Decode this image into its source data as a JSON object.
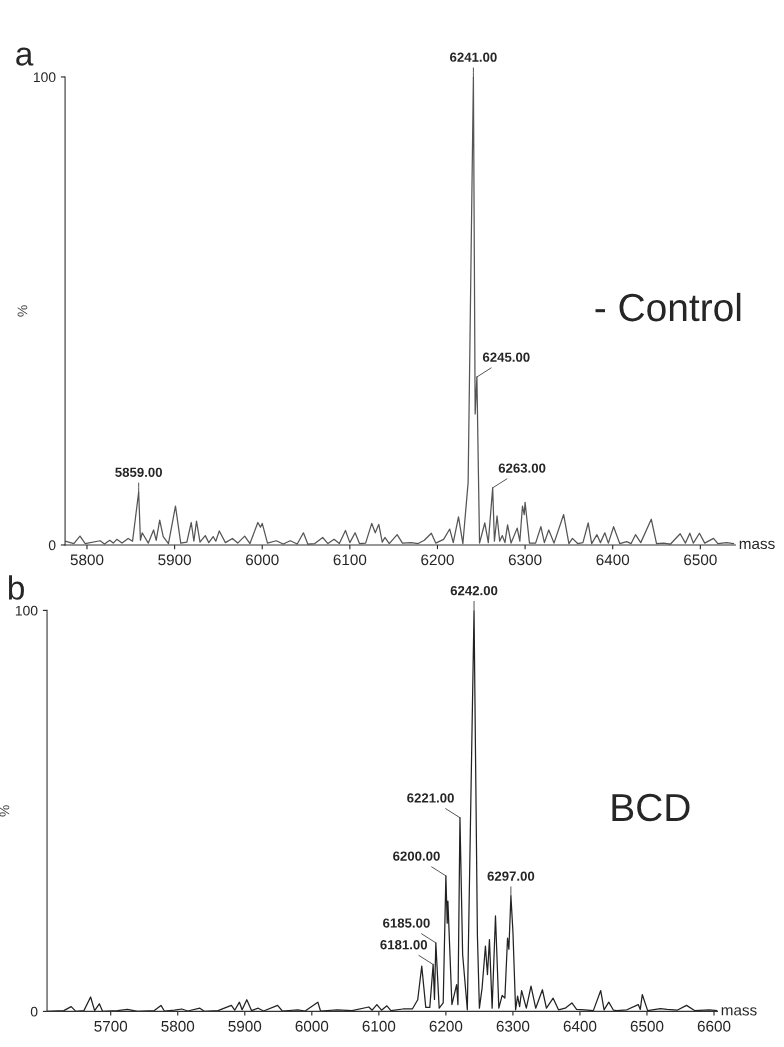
{
  "chart_data": [
    {
      "type": "line",
      "title": "a",
      "xlabel": "mass",
      "ylabel": "%",
      "xlim": [
        5775,
        6540
      ],
      "ylim": [
        0,
        100
      ],
      "xticks": [
        5800,
        5900,
        6000,
        6100,
        6200,
        6300,
        6400,
        6500
      ],
      "yticks": [
        0,
        100
      ],
      "grid": false,
      "marker": "none",
      "line_style": "solid",
      "series": [
        {
          "color": "#555555",
          "x": [
            5775,
            5785,
            5792,
            5798,
            5815,
            5820,
            5826,
            5830,
            5834,
            5840,
            5847,
            5852,
            5859,
            5861,
            5863,
            5870,
            5876,
            5879,
            5883,
            5887,
            5893,
            5901,
            5907,
            5914,
            5919,
            5922,
            5925,
            5929,
            5935,
            5939,
            5944,
            5947,
            5951,
            5958,
            5966,
            5972,
            5980,
            5986,
            5995,
            5998,
            6000,
            6006,
            6016,
            6024,
            6032,
            6040,
            6047,
            6052,
            6060,
            6069,
            6075,
            6082,
            6088,
            6095,
            6100,
            6106,
            6111,
            6118,
            6125,
            6129,
            6133,
            6137,
            6140,
            6145,
            6154,
            6160,
            6170,
            6178,
            6185,
            6193,
            6198,
            6207,
            6214,
            6218,
            6224,
            6229,
            6235,
            6241,
            6243,
            6245,
            6248,
            6254,
            6258,
            6263,
            6265,
            6268,
            6271,
            6274,
            6277,
            6280,
            6284,
            6291,
            6294,
            6297,
            6299,
            6300,
            6305,
            6312,
            6318,
            6322,
            6327,
            6333,
            6344,
            6350,
            6354,
            6360,
            6366,
            6372,
            6376,
            6382,
            6386,
            6391,
            6395,
            6401,
            6408,
            6416,
            6421,
            6426,
            6432,
            6444,
            6450,
            6458,
            6466,
            6477,
            6483,
            6488,
            6492,
            6499,
            6505,
            6515,
            6520,
            6530,
            6538
          ],
          "values": [
            0.8,
            0.3,
            1.9,
            0.3,
            0.9,
            0.2,
            1.0,
            0.4,
            1.2,
            0.4,
            1.4,
            0.8,
            11.3,
            1.0,
            2.6,
            0.4,
            3.2,
            1.0,
            5.3,
            1.8,
            0.3,
            8.3,
            0.4,
            0.6,
            4.8,
            0.8,
            5.1,
            0.6,
            2.0,
            0.5,
            1.8,
            0.8,
            3.0,
            0.5,
            1.4,
            0.4,
            1.9,
            0.3,
            4.8,
            3.8,
            4.6,
            0.4,
            0.9,
            0.2,
            0.9,
            0.2,
            2.6,
            0.2,
            0.3,
            1.6,
            0.3,
            1.2,
            0.3,
            3.1,
            0.5,
            2.6,
            0.3,
            0.4,
            4.6,
            2.6,
            4.4,
            0.6,
            1.6,
            0.3,
            2.2,
            0.4,
            0.5,
            0.3,
            1.0,
            2.5,
            0.4,
            1.2,
            3.4,
            0.5,
            6.0,
            0.3,
            13.4,
            100,
            28,
            35.9,
            0.4,
            4.7,
            0.5,
            12.2,
            0.8,
            6.2,
            0.8,
            2.0,
            0.5,
            4.3,
            0.4,
            3.6,
            0.8,
            8.3,
            6.5,
            9.1,
            0.4,
            0.4,
            3.9,
            0.5,
            3.2,
            0.4,
            6.5,
            0.3,
            1.4,
            0.3,
            0.5,
            4.7,
            0.3,
            2.2,
            0.5,
            2.6,
            0.4,
            3.9,
            0.3,
            0.7,
            0.3,
            2.2,
            0.5,
            5.5,
            0.3,
            0.4,
            0.2,
            2.4,
            0.4,
            2.5,
            0.4,
            2.5,
            0.4,
            1.4,
            0.3,
            0.5,
            0.3
          ]
        }
      ],
      "annotations": [
        {
          "text": "6241.00",
          "x": 6241,
          "y": 100
        },
        {
          "text": "6245.00",
          "x": 6245,
          "y": 35.9
        },
        {
          "text": "6263.00",
          "x": 6263,
          "y": 12.2
        },
        {
          "text": "5859.00",
          "x": 5859,
          "y": 11.3
        },
        "- Control"
      ]
    },
    {
      "type": "line",
      "title": "b",
      "xlabel": "mass",
      "ylabel": "%",
      "xlim": [
        5605,
        6605
      ],
      "ylim": [
        0,
        100
      ],
      "xticks": [
        5700,
        5800,
        5900,
        6000,
        6100,
        6200,
        6300,
        6400,
        6500,
        6600
      ],
      "yticks": [
        0,
        100
      ],
      "grid": false,
      "marker": "none",
      "line_style": "solid",
      "series": [
        {
          "color": "#222222",
          "x": [
            5605,
            5630,
            5641,
            5648,
            5660,
            5670,
            5676,
            5683,
            5688,
            5710,
            5725,
            5740,
            5765,
            5775,
            5780,
            5795,
            5806,
            5815,
            5833,
            5840,
            5860,
            5880,
            5885,
            5892,
            5896,
            5903,
            5910,
            5920,
            5928,
            5949,
            5956,
            5979,
            5990,
            6009,
            6013,
            6038,
            6060,
            6085,
            6090,
            6097,
            6104,
            6112,
            6118,
            6136,
            6150,
            6158,
            6164,
            6170,
            6176,
            6181,
            6183,
            6185,
            6190,
            6196,
            6200,
            6202,
            6203,
            6209,
            6216,
            6218,
            6221,
            6225,
            6232,
            6242,
            6247,
            6250,
            6254,
            6259,
            6262,
            6265,
            6269,
            6274,
            6279,
            6284,
            6288,
            6292,
            6294,
            6297,
            6300,
            6304,
            6307,
            6310,
            6313,
            6320,
            6327,
            6334,
            6344,
            6350,
            6360,
            6368,
            6378,
            6388,
            6395,
            6407,
            6420,
            6431,
            6436,
            6443,
            6450,
            6455,
            6470,
            6487,
            6490,
            6493,
            6501,
            6520,
            6530,
            6545,
            6559,
            6571,
            6593,
            6605
          ],
          "values": [
            0,
            0.2,
            1.2,
            0,
            0.2,
            3.6,
            0.2,
            1.9,
            0,
            0.2,
            0.5,
            0,
            0.2,
            1.5,
            0.1,
            0.3,
            0.6,
            0.1,
            0.8,
            0,
            0.2,
            1.5,
            0.3,
            2.3,
            0.4,
            2.9,
            0.2,
            0.8,
            0.1,
            1.5,
            0.1,
            0.4,
            0.1,
            2.3,
            0.1,
            0.4,
            0.2,
            1.1,
            0.3,
            1.7,
            0.3,
            1.4,
            0.2,
            0.6,
            0.6,
            2.9,
            11.3,
            1.0,
            1.0,
            11.7,
            3.0,
            17.1,
            0.8,
            2.1,
            33.8,
            22.0,
            27.5,
            1.7,
            6.7,
            1.7,
            48.3,
            14.2,
            0.4,
            100,
            19.2,
            0.8,
            5.8,
            16.3,
            9.2,
            17.9,
            0.8,
            23.8,
            0.8,
            4.0,
            3.3,
            18.3,
            15.5,
            28.8,
            20.0,
            0.4,
            3.8,
            1.2,
            5.2,
            0.8,
            6.3,
            0.8,
            5.4,
            0.8,
            3.3,
            0.4,
            0.8,
            2.1,
            0.5,
            0.4,
            0.2,
            5.2,
            0.4,
            2.3,
            0.3,
            0.2,
            0.4,
            1.7,
            0.5,
            4.2,
            0.2,
            0.7,
            0.5,
            0.3,
            1.5,
            0.2,
            0.4,
            0.2
          ]
        }
      ],
      "annotations": [
        {
          "text": "6242.00",
          "x": 6242,
          "y": 100
        },
        {
          "text": "6221.00",
          "x": 6221,
          "y": 48.3
        },
        {
          "text": "6200.00",
          "x": 6200,
          "y": 33.8
        },
        {
          "text": "6297.00",
          "x": 6297,
          "y": 28.8
        },
        {
          "text": "6185.00",
          "x": 6185,
          "y": 17.1
        },
        {
          "text": "6181.00",
          "x": 6181,
          "y": 11.7
        },
        "BCD"
      ]
    }
  ]
}
